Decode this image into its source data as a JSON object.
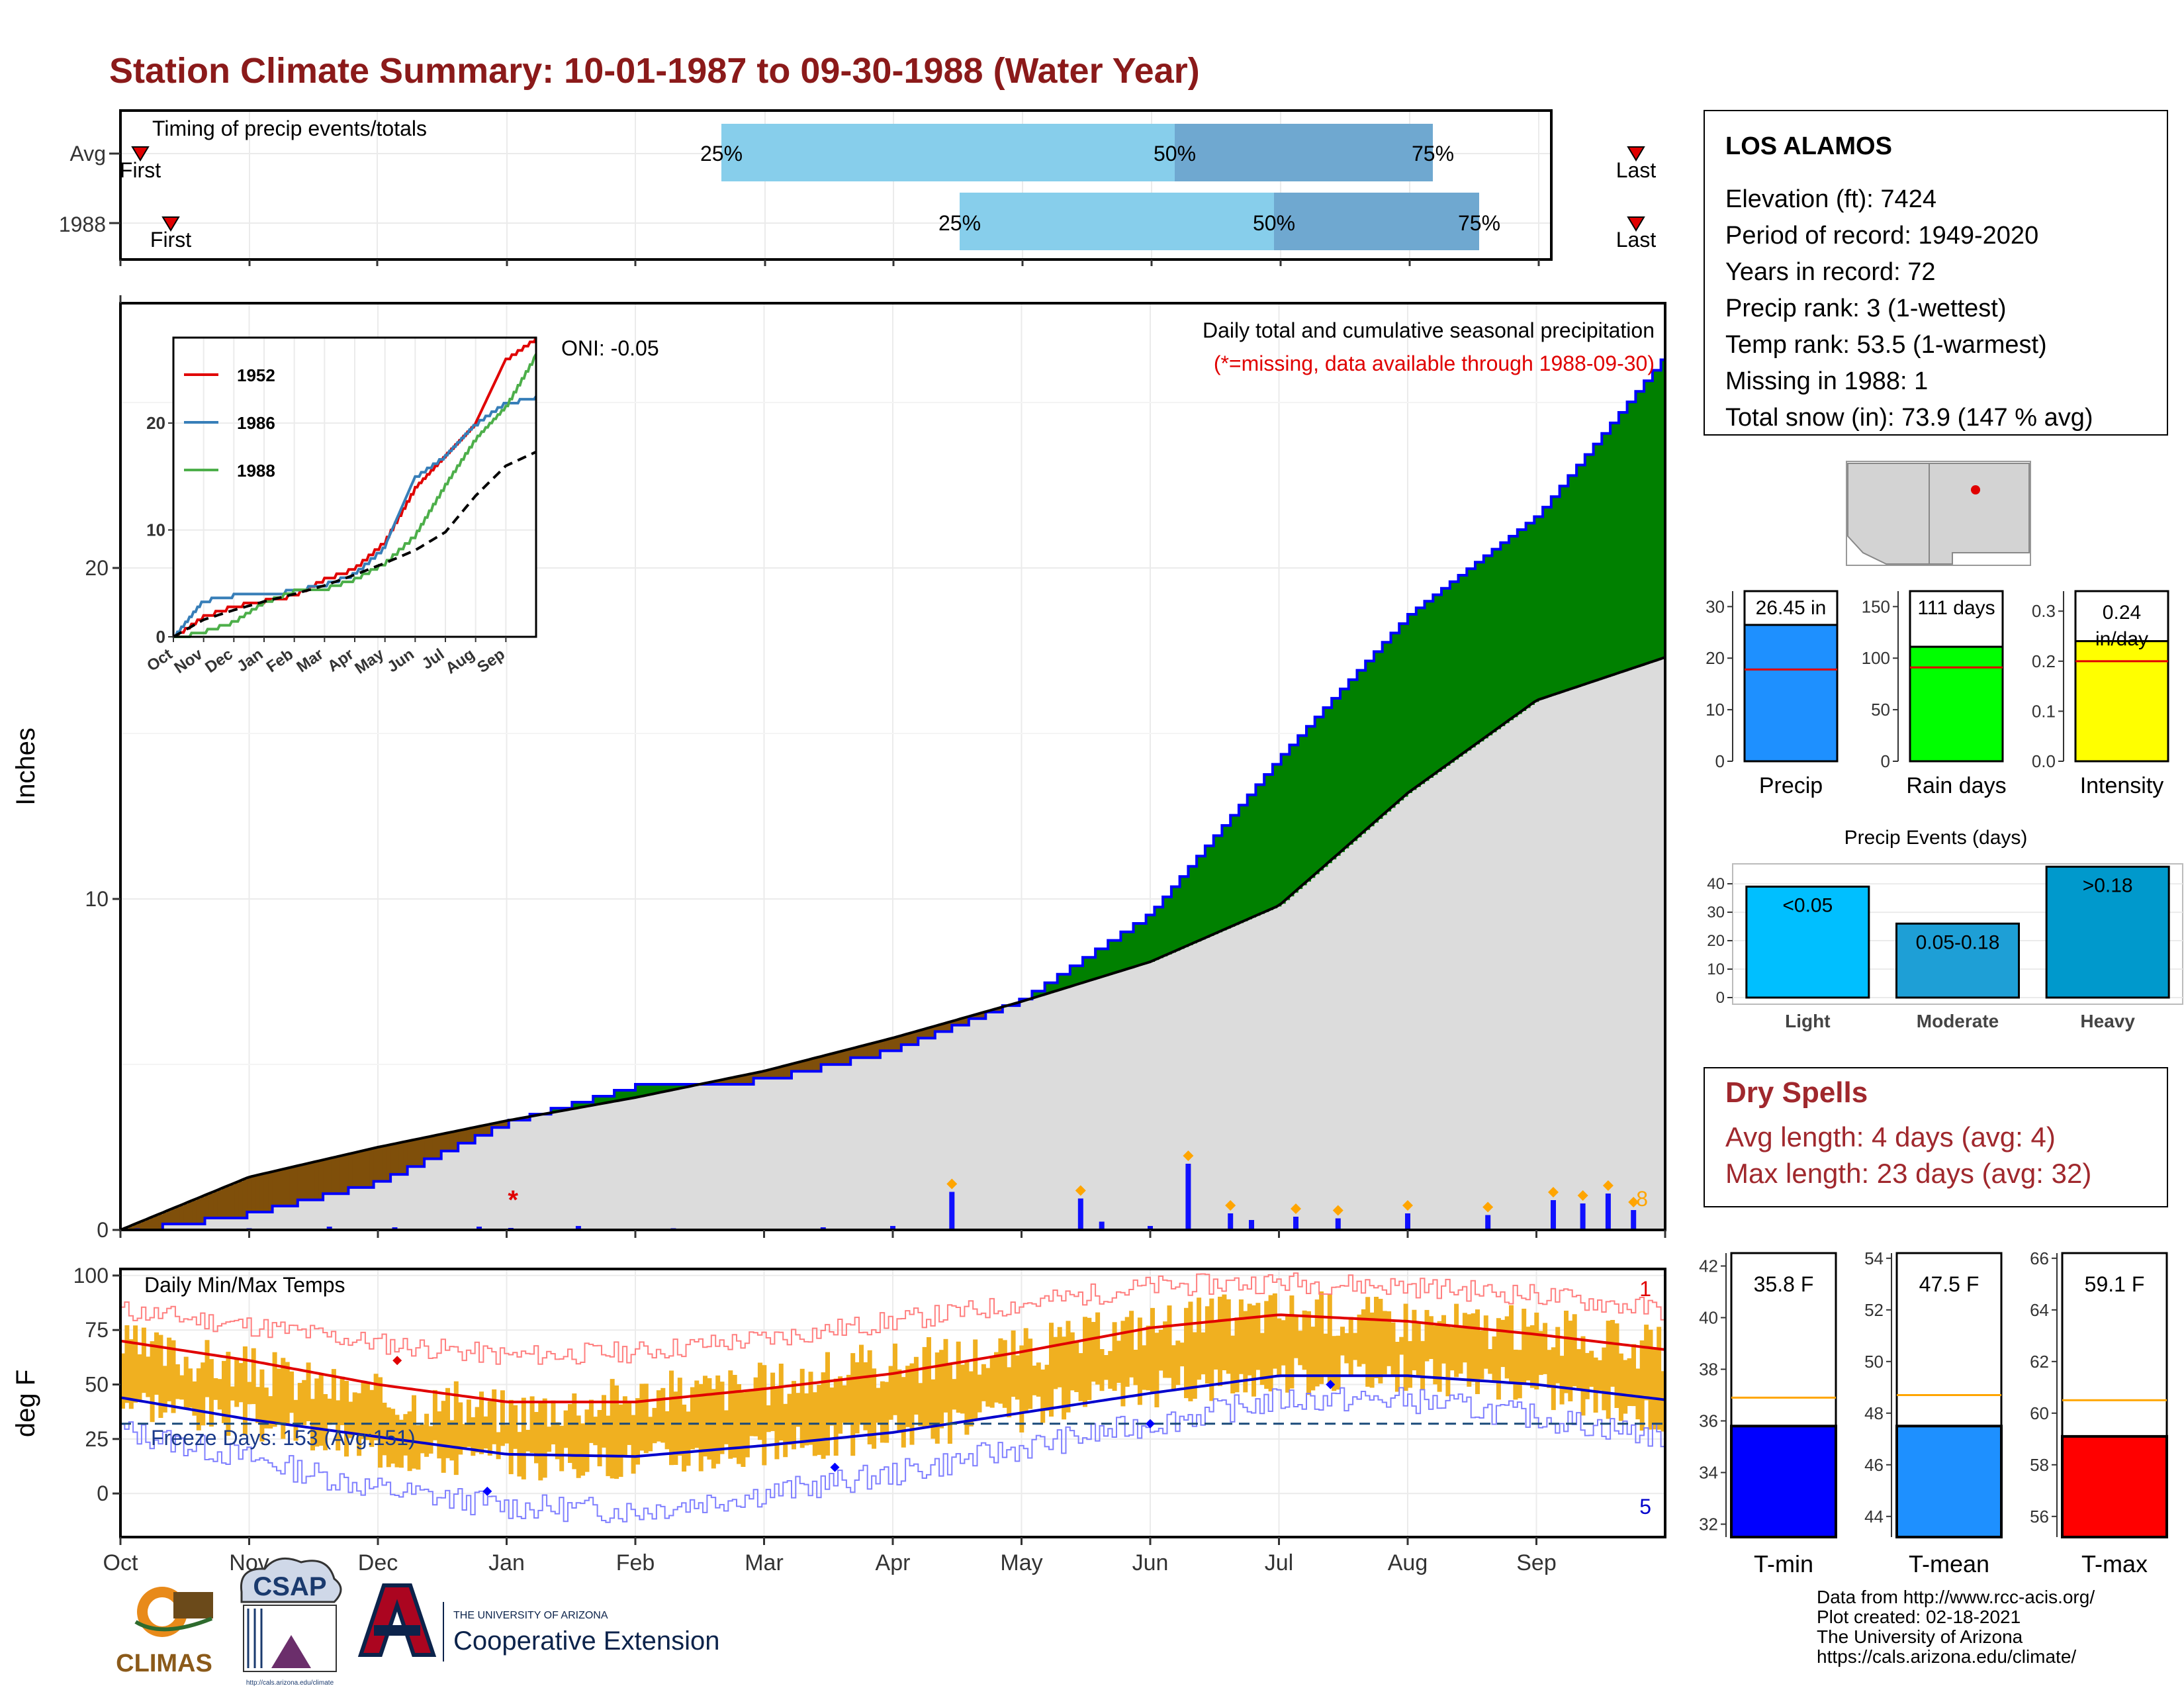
{
  "title": "Station Climate Summary: 10-01-1987 to 09-30-1988 (Water Year)",
  "colors": {
    "title": "#8B1A1A",
    "precip_bar": "#1E90FF",
    "rain_bar": "#00FF00",
    "intensity_bar": "#FFFF00",
    "events_light": "#00BFFF",
    "events_moderate": "#1E9FD6",
    "events_heavy": "#0099CC",
    "above_normal": "#008000",
    "below_normal": "#7F4F0A",
    "normal_fill": "#DCDCDC",
    "cum_line": "#0000FF",
    "tmin": "#0000FF",
    "tmean": "#1E90FF",
    "tmax": "#FF0000",
    "daily_range": "#F0B020",
    "dry_spells": "#A0282D",
    "timing_q1": "#87CEEB",
    "timing_q2": "#6FA8D0"
  },
  "timing": {
    "title": "Timing of precip events/totals",
    "rows": [
      {
        "label": "Avg",
        "first_label": "First",
        "last_label": "Last",
        "q25_label": "25%",
        "q50_label": "50%",
        "q75_label": "75%"
      },
      {
        "label": "1988",
        "first_label": "First",
        "last_label": "Last",
        "q25_label": "25%",
        "q50_label": "50%",
        "q75_label": "75%"
      }
    ]
  },
  "station": {
    "name": "LOS ALAMOS",
    "lines": [
      "Elevation (ft): 7424",
      "Period of record: 1949-2020",
      "Years in record: 72",
      "Precip rank: 3 (1-wettest)",
      "Temp rank: 53.5 (1-warmest)",
      "Missing in 1988: 1",
      "Total snow (in): 73.9 (147 % avg)"
    ]
  },
  "main_chart": {
    "ylabel": "Inches",
    "y_ticks": [
      "0",
      "10",
      "20"
    ],
    "title": "Daily total and cumulative seasonal precipitation",
    "subtitle": "(*=missing, data available through 1988-09-30)",
    "oni": "ONI: -0.05",
    "corner_count": "8",
    "x_months": [
      "Oct",
      "Nov",
      "Dec",
      "Jan",
      "Feb",
      "Mar",
      "Apr",
      "May",
      "Jun",
      "Jul",
      "Aug",
      "Sep"
    ]
  },
  "chart_data": [
    {
      "type": "area",
      "name": "cumulative_precip",
      "title": "Daily total and cumulative seasonal precipitation",
      "ylabel": "Inches",
      "ylim": [
        0,
        28
      ],
      "x": [
        "Oct",
        "Nov",
        "Dec",
        "Jan",
        "Feb",
        "Mar",
        "Apr",
        "May",
        "Jun",
        "Jul",
        "Aug",
        "Sep",
        "Oct"
      ],
      "series": [
        {
          "name": "1988",
          "values": [
            0,
            0.55,
            1.5,
            3.3,
            4.4,
            4.6,
            5.5,
            7.0,
            9.6,
            14.3,
            18.6,
            21.6,
            26.45
          ]
        },
        {
          "name": "Avg",
          "values": [
            0,
            1.6,
            2.5,
            3.3,
            4.0,
            4.8,
            5.8,
            6.9,
            8.1,
            9.8,
            13.2,
            16.0,
            17.3
          ]
        }
      ]
    },
    {
      "type": "bar",
      "name": "daily_precip",
      "x": [
        "10-05",
        "11-01",
        "11-20",
        "12-05",
        "12-25",
        "01-02",
        "01-18",
        "02-10",
        "03-15",
        "04-01",
        "04-15",
        "05-15",
        "05-20",
        "06-01",
        "06-10",
        "06-20",
        "06-25",
        "07-05",
        "07-15",
        "08-01",
        "08-20",
        "09-05",
        "09-12",
        "09-18",
        "09-24"
      ],
      "values": [
        0.05,
        0.05,
        0.1,
        0.08,
        0.1,
        0.06,
        0.12,
        0.05,
        0.08,
        0.12,
        1.15,
        0.95,
        0.25,
        0.12,
        2.0,
        0.5,
        0.3,
        0.4,
        0.35,
        0.5,
        0.45,
        0.9,
        0.8,
        1.1,
        0.6
      ],
      "ylim": [
        0,
        28
      ]
    },
    {
      "type": "line",
      "name": "inset_cumulative",
      "x": [
        "Oct",
        "Nov",
        "Dec",
        "Jan",
        "Feb",
        "Mar",
        "Apr",
        "May",
        "Jun",
        "Jul",
        "Aug",
        "Sep",
        "Oct"
      ],
      "ylim": [
        0,
        28
      ],
      "y_ticks": [
        0,
        10,
        20
      ],
      "series": [
        {
          "name": "1952",
          "values": [
            0,
            2,
            3,
            3.5,
            4,
            5.5,
            6.5,
            9,
            14,
            17,
            20,
            26,
            28
          ]
        },
        {
          "name": "1986",
          "values": [
            0,
            3.5,
            4,
            4,
            4.5,
            5,
            6,
            8.5,
            15,
            17,
            20,
            22,
            22.5
          ]
        },
        {
          "name": "1988",
          "values": [
            0,
            0.6,
            1.5,
            3.3,
            4.4,
            4.6,
            5.5,
            7,
            9.6,
            14.3,
            18.6,
            21.6,
            26.45
          ]
        },
        {
          "name": "Avg",
          "values": [
            0,
            1.6,
            2.5,
            3.3,
            4,
            4.8,
            5.8,
            6.9,
            8.1,
            9.8,
            13.2,
            16,
            17.3
          ]
        }
      ]
    },
    {
      "type": "bar",
      "name": "precip_total",
      "categories": [
        "Precip"
      ],
      "values": [
        26.45
      ],
      "normal": 17.8,
      "ylim": [
        0,
        33
      ],
      "y_ticks": [
        0,
        10,
        20,
        30
      ],
      "label": "26.45 in"
    },
    {
      "type": "bar",
      "name": "rain_days",
      "categories": [
        "Rain days"
      ],
      "values": [
        111
      ],
      "normal": 91,
      "ylim": [
        0,
        165
      ],
      "y_ticks": [
        0,
        50,
        100,
        150
      ],
      "label": "111 days"
    },
    {
      "type": "bar",
      "name": "intensity",
      "categories": [
        "Intensity"
      ],
      "values": [
        0.24
      ],
      "normal": 0.2,
      "ylim": [
        0,
        0.34
      ],
      "y_ticks": [
        0.0,
        0.1,
        0.2,
        0.3
      ],
      "label": "0.24 in/day"
    },
    {
      "type": "bar",
      "name": "precip_events",
      "title": "Precip Events (days)",
      "categories": [
        "Light",
        "Moderate",
        "Heavy"
      ],
      "bar_labels": [
        "<0.05",
        "0.05-0.18",
        ">0.18"
      ],
      "values": [
        39,
        26,
        46
      ],
      "ylim": [
        0,
        47
      ],
      "y_ticks": [
        0,
        10,
        20,
        30,
        40
      ]
    },
    {
      "type": "line",
      "name": "daily_temps",
      "title": "Daily Min/Max Temps",
      "ylabel": "deg F",
      "ylim": [
        -20,
        103
      ],
      "y_ticks": [
        0,
        25,
        50,
        75,
        100
      ],
      "x": [
        "Oct",
        "Nov",
        "Dec",
        "Jan",
        "Feb",
        "Mar",
        "Apr",
        "May",
        "Jun",
        "Jul",
        "Aug",
        "Sep",
        "Oct"
      ],
      "series": [
        {
          "name": "avg_max",
          "values": [
            70,
            61,
            50,
            42,
            42,
            48,
            55,
            65,
            76,
            82,
            79,
            73,
            66
          ]
        },
        {
          "name": "avg_min",
          "values": [
            44,
            34,
            26,
            18,
            17,
            22,
            28,
            37,
            46,
            54,
            54,
            50,
            43
          ]
        },
        {
          "name": "record_max",
          "values": [
            84,
            77,
            69,
            63,
            65,
            71,
            79,
            87,
            95,
            97,
            95,
            91,
            84
          ]
        },
        {
          "name": "record_min",
          "values": [
            29,
            16,
            2,
            -6,
            -8,
            0,
            9,
            21,
            32,
            43,
            43,
            35,
            26
          ]
        },
        {
          "name": "daily_max_1988",
          "values": [
            68,
            57,
            44,
            38,
            45,
            50,
            60,
            66,
            78,
            84,
            80,
            75,
            65
          ]
        },
        {
          "name": "daily_min_1988",
          "values": [
            44,
            33,
            20,
            14,
            16,
            20,
            28,
            37,
            48,
            54,
            55,
            48,
            35
          ]
        }
      ],
      "freeze_line": 32,
      "freeze_days": "Freeze Days: 153 (Avg:151)",
      "count_top": "1",
      "count_bottom": "5"
    },
    {
      "type": "bar",
      "name": "t_min",
      "categories": [
        "T-min"
      ],
      "values": [
        35.8
      ],
      "normal": 36.9,
      "ylim": [
        31.5,
        42.5
      ],
      "y_ticks": [
        32,
        34,
        36,
        38,
        40,
        42
      ],
      "label": "35.8 F"
    },
    {
      "type": "bar",
      "name": "t_mean",
      "categories": [
        "T-mean"
      ],
      "values": [
        47.5
      ],
      "normal": 48.7,
      "ylim": [
        43.2,
        54.2
      ],
      "y_ticks": [
        44,
        46,
        48,
        50,
        52,
        54
      ],
      "label": "47.5 F"
    },
    {
      "type": "bar",
      "name": "t_max",
      "categories": [
        "T-max"
      ],
      "values": [
        59.1
      ],
      "normal": 60.5,
      "ylim": [
        55.2,
        66.2
      ],
      "y_ticks": [
        56,
        58,
        60,
        62,
        64,
        66
      ],
      "label": "59.1 F"
    }
  ],
  "inset_legend": [
    "1952",
    "1986",
    "1988"
  ],
  "dry_spells": {
    "title": "Dry Spells",
    "avg_length": "Avg length: 4 days (avg: 4)",
    "max_length": "Max length: 23 days (avg: 32)"
  },
  "temps": {
    "title": "Daily Min/Max Temps",
    "ylabel": "deg F"
  },
  "footer": {
    "lines": [
      "Data from http://www.rcc-acis.org/",
      "Plot created: 02-18-2021",
      "The University of Arizona",
      "https://cals.arizona.edu/climate/"
    ],
    "climas": "CLIMAS",
    "csap": "CSAP",
    "csap_url": "http://cals.arizona.edu/climate",
    "ua_small": "THE UNIVERSITY OF ARIZONA",
    "ua_big": "Cooperative Extension"
  }
}
